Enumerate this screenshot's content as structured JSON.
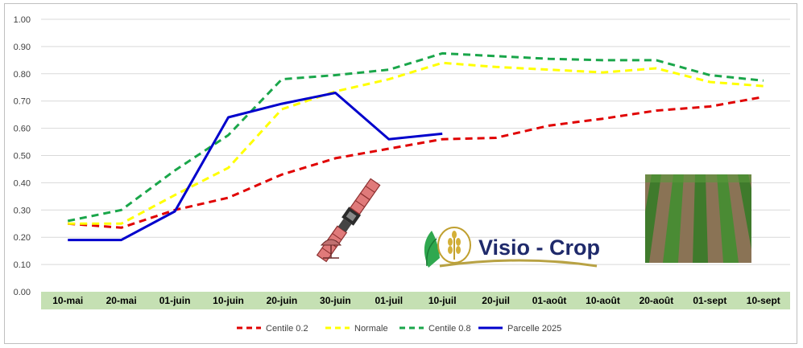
{
  "chart_data": {
    "type": "line",
    "categories": [
      "10-mai",
      "20-mai",
      "01-juin",
      "10-juin",
      "20-juin",
      "30-juin",
      "01-juil",
      "10-juil",
      "20-juil",
      "01-août",
      "10-août",
      "20-août",
      "01-sept",
      "10-sept"
    ],
    "y_ticks": [
      "0.00",
      "0.10",
      "0.20",
      "0.30",
      "0.40",
      "0.50",
      "0.60",
      "0.70",
      "0.80",
      "0.90",
      "1.00"
    ],
    "ylim": [
      0,
      1
    ],
    "grid": "horizontal",
    "legend_position": "bottom",
    "series": [
      {
        "name": "Centile 0.2",
        "color": "#e00000",
        "dash": "dashed",
        "values": [
          0.25,
          0.235,
          0.3,
          0.345,
          0.43,
          0.49,
          0.525,
          0.56,
          0.565,
          0.61,
          0.635,
          0.665,
          0.68,
          0.715
        ]
      },
      {
        "name": "Normale",
        "color": "#ffff00",
        "dash": "dashed",
        "values": [
          0.25,
          0.25,
          0.355,
          0.455,
          0.67,
          0.735,
          0.78,
          0.84,
          0.825,
          0.815,
          0.805,
          0.82,
          0.77,
          0.755
        ]
      },
      {
        "name": "Centile 0.8",
        "color": "#1aa64a",
        "dash": "dashed",
        "values": [
          0.26,
          0.3,
          0.445,
          0.575,
          0.78,
          0.795,
          0.815,
          0.875,
          0.865,
          0.855,
          0.85,
          0.85,
          0.795,
          0.775
        ]
      },
      {
        "name": "Parcelle 2025",
        "color": "#0000cc",
        "dash": "solid",
        "values": [
          0.19,
          0.19,
          0.295,
          0.64,
          0.69,
          0.73,
          0.56,
          0.58,
          null,
          null,
          null,
          null,
          null,
          null
        ]
      }
    ]
  },
  "logo": {
    "text": "Visio - Crop"
  },
  "colors": {
    "axis_band": "#c5e0b3",
    "grid": "#d9d9d9",
    "logo_text": "#1f2a6b",
    "logo_arc": "#b8a244"
  },
  "icons": [
    "satellite-icon",
    "wheat-hand-logo-icon",
    "crop-field-photo"
  ]
}
